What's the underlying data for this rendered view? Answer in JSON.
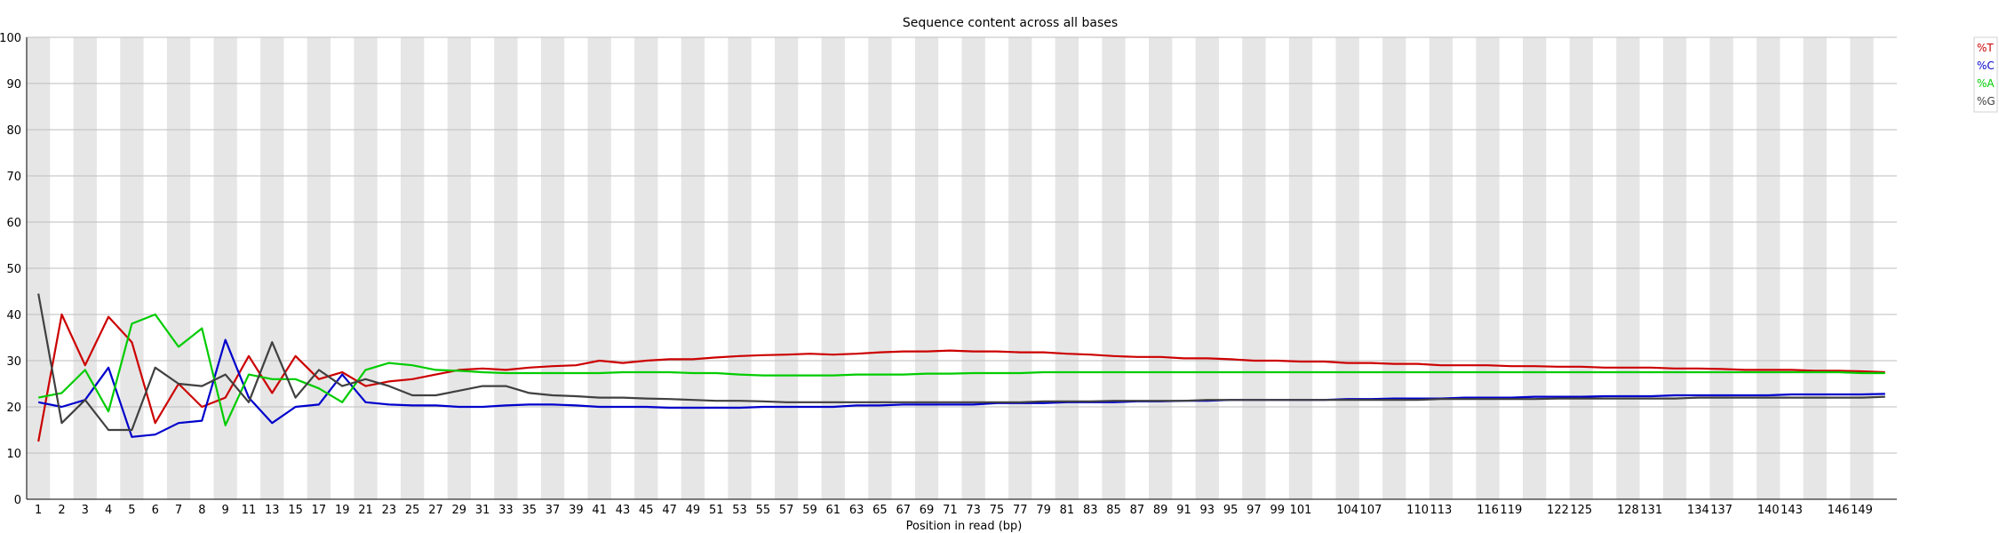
{
  "chart_data": {
    "type": "line",
    "title": "Sequence content across all bases",
    "xlabel": "Position in read (bp)",
    "ylabel": "",
    "ylim": [
      0,
      100
    ],
    "y_ticks": [
      0,
      10,
      20,
      30,
      40,
      50,
      60,
      70,
      80,
      90,
      100
    ],
    "grid": true,
    "legend_position": "top-right",
    "x": [
      "1",
      "2",
      "3",
      "4",
      "5",
      "6",
      "7",
      "8",
      "9",
      "10-11",
      "12-13",
      "14-15",
      "16-17",
      "18-19",
      "20-21",
      "22-23",
      "24-25",
      "26-27",
      "28-29",
      "30-31",
      "32-33",
      "34-35",
      "36-37",
      "38-39",
      "40-41",
      "42-43",
      "44-45",
      "46-47",
      "48-49",
      "50-51",
      "52-53",
      "54-55",
      "56-57",
      "58-59",
      "60-61",
      "62-63",
      "64-65",
      "66-67",
      "68-69",
      "70-71",
      "72-73",
      "74-75",
      "76-77",
      "78-79",
      "80-81",
      "82-83",
      "84-85",
      "86-87",
      "88-89",
      "90-91",
      "92-93",
      "94-95",
      "96-97",
      "98-99",
      "100-101",
      "102-103",
      "104-105",
      "106-107",
      "108-109",
      "110-111",
      "112-113",
      "114-115",
      "116-117",
      "118-119",
      "120-121",
      "122-123",
      "124-125",
      "126-127",
      "128-129",
      "130-131",
      "132-133",
      "134-135",
      "136-137",
      "138-139",
      "140-141",
      "142-143",
      "144-145",
      "146-147",
      "148-149",
      "150-151"
    ],
    "x_tick_labels": [
      "1",
      "2",
      "3",
      "4",
      "5",
      "6",
      "7",
      "8",
      "9",
      "11",
      "13",
      "15",
      "17",
      "19",
      "21",
      "23",
      "25",
      "27",
      "29",
      "31",
      "33",
      "35",
      "37",
      "39",
      "41",
      "43",
      "45",
      "47",
      "49",
      "51",
      "53",
      "55",
      "57",
      "59",
      "61",
      "63",
      "65",
      "67",
      "69",
      "71",
      "73",
      "75",
      "77",
      "79",
      "81",
      "83",
      "85",
      "87",
      "89",
      "91",
      "93",
      "95",
      "97",
      "99",
      "101",
      "104",
      "107",
      "110",
      "113",
      "116",
      "119",
      "122",
      "125",
      "128",
      "131",
      "134",
      "137",
      "140",
      "143",
      "146",
      "149"
    ],
    "series": [
      {
        "name": "%T",
        "color": "#cc0000",
        "values": [
          12.5,
          40.0,
          29.0,
          39.5,
          34.0,
          16.5,
          25.0,
          20.0,
          22.0,
          31.0,
          23.0,
          31.0,
          26.0,
          27.5,
          24.5,
          25.5,
          26.0,
          27.0,
          28.0,
          28.3,
          28.0,
          28.5,
          28.8,
          29.0,
          30.0,
          29.5,
          30.0,
          30.3,
          30.3,
          30.7,
          31.0,
          31.2,
          31.3,
          31.5,
          31.3,
          31.5,
          31.8,
          32.0,
          32.0,
          32.2,
          32.0,
          32.0,
          31.8,
          31.8,
          31.5,
          31.3,
          31.0,
          30.8,
          30.8,
          30.5,
          30.5,
          30.3,
          30.0,
          30.0,
          29.8,
          29.8,
          29.5,
          29.5,
          29.3,
          29.3,
          29.0,
          29.0,
          29.0,
          28.8,
          28.8,
          28.7,
          28.7,
          28.5,
          28.5,
          28.5,
          28.3,
          28.3,
          28.2,
          28.0,
          28.0,
          28.0,
          27.8,
          27.8,
          27.7,
          27.5
        ]
      },
      {
        "name": "%C",
        "color": "#0000cc",
        "values": [
          21.0,
          20.0,
          21.5,
          28.5,
          13.5,
          14.0,
          16.5,
          17.0,
          34.5,
          22.0,
          16.5,
          20.0,
          20.5,
          27.0,
          21.0,
          20.5,
          20.3,
          20.3,
          20.0,
          20.0,
          20.3,
          20.5,
          20.5,
          20.3,
          20.0,
          20.0,
          20.0,
          19.8,
          19.8,
          19.8,
          19.8,
          20.0,
          20.0,
          20.0,
          20.0,
          20.3,
          20.3,
          20.5,
          20.5,
          20.5,
          20.5,
          20.8,
          20.8,
          20.8,
          21.0,
          21.0,
          21.0,
          21.2,
          21.2,
          21.3,
          21.3,
          21.5,
          21.5,
          21.5,
          21.5,
          21.5,
          21.7,
          21.7,
          21.8,
          21.8,
          21.8,
          22.0,
          22.0,
          22.0,
          22.2,
          22.2,
          22.2,
          22.3,
          22.3,
          22.3,
          22.5,
          22.5,
          22.5,
          22.5,
          22.5,
          22.7,
          22.7,
          22.7,
          22.7,
          22.8
        ]
      },
      {
        "name": "%A",
        "color": "#00cc00",
        "values": [
          22.0,
          23.0,
          28.0,
          19.0,
          38.0,
          40.0,
          33.0,
          37.0,
          16.0,
          27.0,
          26.0,
          26.0,
          24.0,
          21.0,
          28.0,
          29.5,
          29.0,
          28.0,
          27.8,
          27.5,
          27.3,
          27.3,
          27.3,
          27.3,
          27.3,
          27.5,
          27.5,
          27.5,
          27.3,
          27.3,
          27.0,
          26.8,
          26.8,
          26.8,
          26.8,
          27.0,
          27.0,
          27.0,
          27.2,
          27.2,
          27.3,
          27.3,
          27.3,
          27.5,
          27.5,
          27.5,
          27.5,
          27.5,
          27.5,
          27.5,
          27.5,
          27.5,
          27.5,
          27.5,
          27.5,
          27.5,
          27.5,
          27.5,
          27.5,
          27.5,
          27.5,
          27.5,
          27.5,
          27.5,
          27.5,
          27.5,
          27.5,
          27.5,
          27.5,
          27.5,
          27.5,
          27.5,
          27.5,
          27.5,
          27.5,
          27.5,
          27.5,
          27.5,
          27.3,
          27.3
        ]
      },
      {
        "name": "%G",
        "color": "#404040",
        "values": [
          44.5,
          16.5,
          21.5,
          15.0,
          15.0,
          28.5,
          25.0,
          24.5,
          27.0,
          21.0,
          34.0,
          22.0,
          28.0,
          24.5,
          26.0,
          24.5,
          22.5,
          22.5,
          23.5,
          24.5,
          24.5,
          23.0,
          22.5,
          22.3,
          22.0,
          22.0,
          21.8,
          21.7,
          21.5,
          21.3,
          21.3,
          21.2,
          21.0,
          21.0,
          21.0,
          21.0,
          21.0,
          21.0,
          21.0,
          21.0,
          21.0,
          21.0,
          21.0,
          21.2,
          21.2,
          21.2,
          21.3,
          21.3,
          21.3,
          21.3,
          21.5,
          21.5,
          21.5,
          21.5,
          21.5,
          21.5,
          21.5,
          21.5,
          21.5,
          21.5,
          21.7,
          21.7,
          21.7,
          21.7,
          21.7,
          21.8,
          21.8,
          21.8,
          21.8,
          21.8,
          21.8,
          22.0,
          22.0,
          22.0,
          22.0,
          22.0,
          22.0,
          22.0,
          22.0,
          22.2
        ]
      }
    ]
  }
}
